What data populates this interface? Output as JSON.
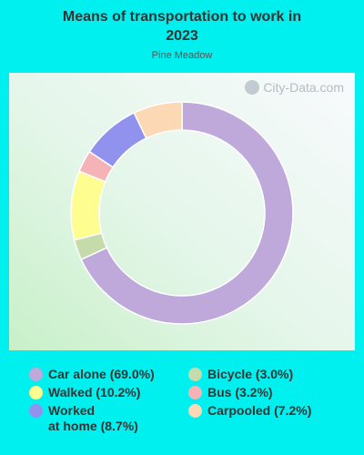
{
  "chart_data": {
    "type": "pie",
    "title": "Means of transportation to work in\n2023",
    "subtitle": "Pine Meadow",
    "watermark": "City-Data.com",
    "categories": [
      "Car alone",
      "Bicycle",
      "Walked",
      "Bus",
      "Worked at home",
      "Carpooled"
    ],
    "values": [
      69.0,
      3.0,
      10.2,
      3.2,
      8.7,
      7.2
    ],
    "colors": [
      "#bea9da",
      "#c5dcaa",
      "#fdfd90",
      "#f5b3b8",
      "#9191ee",
      "#fcd8b4"
    ],
    "legend": [
      {
        "label": "Car alone (69.0%)",
        "color": "#bea9da"
      },
      {
        "label": "Walked (10.2%)",
        "color": "#fdfd90"
      },
      {
        "label": "Worked\nat home (8.7%)",
        "color": "#9191ee"
      },
      {
        "label": "Bicycle (3.0%)",
        "color": "#c5dcaa"
      },
      {
        "label": "Bus (3.2%)",
        "color": "#f5b3b8"
      },
      {
        "label": "Carpooled (7.2%)",
        "color": "#fcd8b4"
      }
    ],
    "legend_placement": "bottom",
    "donut": true
  }
}
